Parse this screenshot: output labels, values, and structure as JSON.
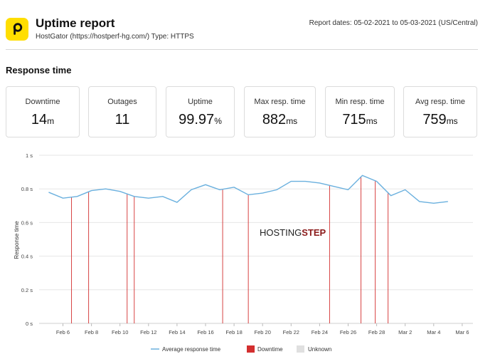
{
  "header": {
    "title": "Uptime report",
    "subtitle": "HostGator (https://hostperf-hg.com/) Type: HTTPS",
    "dates": "Report dates: 05-02-2021 to 05-03-2021 (US/Central)",
    "logo_icon": "p-logo-icon",
    "logo_color": "#ffde00"
  },
  "section_title": "Response time",
  "stats": [
    {
      "label": "Downtime",
      "value": "14",
      "unit": "m"
    },
    {
      "label": "Outages",
      "value": "11",
      "unit": ""
    },
    {
      "label": "Uptime",
      "value": "99.97",
      "unit": "%"
    },
    {
      "label": "Max resp. time",
      "value": "882",
      "unit": "ms"
    },
    {
      "label": "Min resp. time",
      "value": "715",
      "unit": "ms"
    },
    {
      "label": "Avg resp. time",
      "value": "759",
      "unit": "ms"
    }
  ],
  "watermark": {
    "part1": "HOSTING",
    "part2": "STEP"
  },
  "chart_data": {
    "type": "line",
    "ylabel": "Response time",
    "ylim": [
      0,
      1
    ],
    "yticks": [
      "0 s",
      "0.2 s",
      "0.4 s",
      "0.6 s",
      "0.8 s",
      "1 s"
    ],
    "x_tick_labels": [
      "Feb 6",
      "Feb 8",
      "Feb 10",
      "Feb 12",
      "Feb 14",
      "Feb 16",
      "Feb 18",
      "Feb 20",
      "Feb 22",
      "Feb 24",
      "Feb 26",
      "Feb 28",
      "Mar 2",
      "Mar 4",
      "Mar 6"
    ],
    "grid": true,
    "legend_position": "bottom",
    "legend": [
      "Average response time",
      "Downtime",
      "Unknown"
    ],
    "colors": {
      "line": "#6ab0de",
      "downtime": "#d32f2f",
      "unknown": "#e0e0e0"
    },
    "series": [
      {
        "name": "Average response time",
        "x": [
          "Feb 5",
          "Feb 6",
          "Feb 7",
          "Feb 8",
          "Feb 9",
          "Feb 10",
          "Feb 11",
          "Feb 12",
          "Feb 13",
          "Feb 14",
          "Feb 15",
          "Feb 16",
          "Feb 17",
          "Feb 18",
          "Feb 19",
          "Feb 20",
          "Feb 21",
          "Feb 22",
          "Feb 23",
          "Feb 24",
          "Feb 25",
          "Feb 26",
          "Feb 27",
          "Feb 28",
          "Mar 1",
          "Mar 2",
          "Mar 3",
          "Mar 4",
          "Mar 5"
        ],
        "values": [
          0.78,
          0.745,
          0.755,
          0.79,
          0.8,
          0.785,
          0.755,
          0.745,
          0.755,
          0.72,
          0.795,
          0.825,
          0.795,
          0.81,
          0.765,
          0.775,
          0.795,
          0.845,
          0.845,
          0.835,
          0.815,
          0.795,
          0.88,
          0.845,
          0.76,
          0.795,
          0.725,
          0.715,
          0.725
        ]
      }
    ],
    "downtime_events": [
      "Feb 6.6",
      "Feb 7.8",
      "Feb 10.5",
      "Feb 11",
      "Feb 17.2",
      "Feb 19",
      "Feb 24.7",
      "Feb 26.9",
      "Feb 27.9",
      "Feb 28.8"
    ]
  }
}
